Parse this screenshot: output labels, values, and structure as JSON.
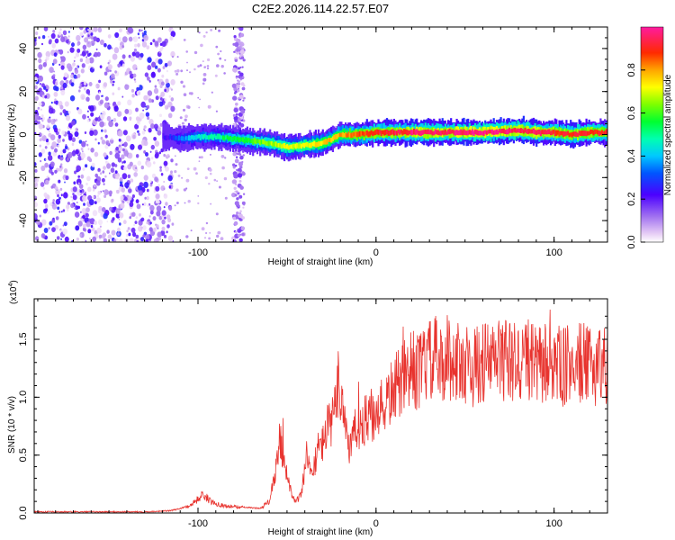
{
  "title": "C2E2.2026.114.22.57.E07",
  "chart_data": [
    {
      "type": "heatmap",
      "name": "spectrogram",
      "title": "C2E2.2026.114.22.57.E07",
      "xlabel": "Height of straight line (km)",
      "ylabel": "Frequency (Hz)",
      "xlim": [
        -192,
        130
      ],
      "ylim": [
        -50,
        50
      ],
      "xticks": [
        -100,
        0,
        100
      ],
      "xtick_labels": [
        "-100",
        "0",
        "100"
      ],
      "yticks": [
        -40,
        -20,
        0,
        20,
        40
      ],
      "ytick_labels": [
        "-40",
        "-20",
        "0",
        "20",
        "40"
      ],
      "colorbar": {
        "label": "Normalized spectral amplitude",
        "range": [
          0,
          1
        ],
        "ticks": [
          0,
          0.2,
          0.4,
          0.6,
          0.8
        ],
        "tick_labels": [
          "0.0",
          "0.2",
          "0.4",
          "0.6",
          "0.8"
        ]
      },
      "noise_region_x": [
        -192,
        -114
      ],
      "noise_strip_x": [
        -80,
        -74
      ],
      "ridge": {
        "x": [
          -120,
          -110,
          -100,
          -90,
          -80,
          -70,
          -60,
          -50,
          -40,
          -30,
          -20,
          -10,
          0,
          20,
          40,
          60,
          80,
          90,
          100,
          110,
          120,
          130
        ],
        "freq": [
          -1,
          -2,
          -1,
          -1,
          -2,
          -3,
          -4,
          -6,
          -5,
          -4,
          0,
          0,
          1,
          1,
          1,
          1,
          2,
          1,
          1,
          0,
          1,
          1
        ],
        "amplitude": [
          0.2,
          0.35,
          0.45,
          0.5,
          0.55,
          0.6,
          0.65,
          0.7,
          0.7,
          0.75,
          0.8,
          0.85,
          0.9,
          0.95,
          0.95,
          0.98,
          0.95,
          0.95,
          0.9,
          0.9,
          0.9,
          0.9
        ]
      }
    },
    {
      "type": "line",
      "name": "snr",
      "xlabel": "Height of straight line (km)",
      "ylabel": "SNR (10 * v/v)",
      "yscale_label": "(x10",
      "yscale_exp": "4",
      "xlim": [
        -192,
        130
      ],
      "ylim": [
        0,
        1.85
      ],
      "xticks": [
        -100,
        0,
        100
      ],
      "xtick_labels": [
        "-100",
        "0",
        "100"
      ],
      "yticks": [
        0,
        0.5,
        1.0,
        1.5
      ],
      "ytick_labels": [
        "0.0",
        "0.5",
        "1.0",
        "1.5"
      ],
      "color": "#e8332e",
      "series": [
        {
          "name": "SNR",
          "x": [
            -192,
            -170,
            -150,
            -130,
            -115,
            -105,
            -100,
            -97,
            -93,
            -85,
            -75,
            -65,
            -60,
            -57,
            -54,
            -51,
            -48,
            -45,
            -42,
            -39,
            -36,
            -33,
            -30,
            -27,
            -24,
            -21,
            -18,
            -15,
            -12,
            -9,
            -6,
            -3,
            0,
            3,
            6,
            9,
            12,
            15,
            18,
            21,
            24,
            27,
            30,
            33,
            36,
            40,
            45,
            50,
            55,
            60,
            65,
            70,
            75,
            80,
            85,
            90,
            95,
            100,
            105,
            110,
            115,
            120,
            125,
            130
          ],
          "values": [
            0.01,
            0.01,
            0.01,
            0.01,
            0.02,
            0.06,
            0.12,
            0.16,
            0.1,
            0.06,
            0.05,
            0.04,
            0.1,
            0.3,
            0.65,
            0.4,
            0.2,
            0.1,
            0.15,
            0.5,
            0.3,
            0.55,
            0.6,
            0.75,
            0.8,
            1.1,
            0.9,
            0.55,
            0.7,
            0.75,
            0.8,
            0.85,
            0.75,
            0.9,
            0.95,
            1.05,
            1.1,
            1.15,
            1.2,
            1.25,
            1.2,
            1.3,
            1.3,
            1.35,
            1.25,
            1.35,
            1.3,
            1.3,
            1.25,
            1.3,
            1.3,
            1.35,
            1.3,
            1.3,
            1.35,
            1.25,
            1.3,
            1.3,
            1.25,
            1.3,
            1.3,
            1.25,
            1.3,
            1.3
          ]
        }
      ]
    }
  ]
}
